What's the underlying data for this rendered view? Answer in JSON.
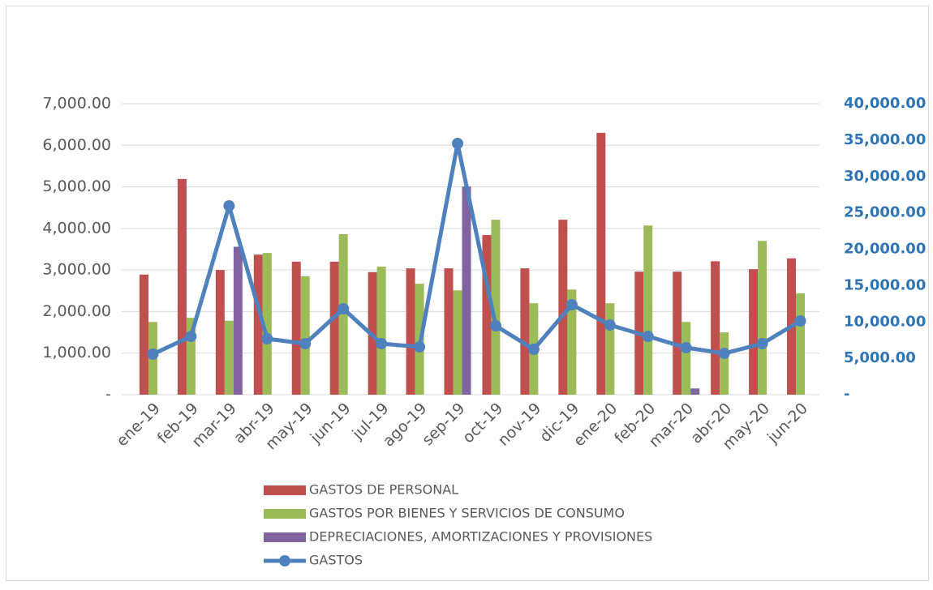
{
  "chart_data": {
    "type": "bar",
    "categories": [
      "ene-19",
      "feb-19",
      "mar-19",
      "abr-19",
      "may-19",
      "jun-19",
      "jul-19",
      "ago-19",
      "sep-19",
      "oct-19",
      "nov-19",
      "dic-19",
      "ene-20",
      "feb-20",
      "mar-20",
      "abr-20",
      "may-20",
      "jun-20"
    ],
    "series": [
      {
        "name": "GASTOS DE PERSONAL",
        "color": "#c0504d",
        "type": "bar",
        "values": [
          2890,
          5190,
          3000,
          3370,
          3200,
          3200,
          2950,
          3040,
          3040,
          3840,
          3040,
          4210,
          6300,
          2960,
          2960,
          3210,
          3020,
          3280
        ]
      },
      {
        "name": "GASTOS POR BIENES Y SERVICIOS DE CONSUMO",
        "color": "#9bbb59",
        "type": "bar",
        "values": [
          1750,
          1850,
          1780,
          3410,
          2850,
          3860,
          3080,
          2670,
          2510,
          4210,
          2200,
          2530,
          2200,
          4070,
          1750,
          1500,
          3700,
          2440
        ]
      },
      {
        "name": "DEPRECIACIONES, AMORTIZACIONES Y PROVISIONES",
        "color": "#8064a2",
        "type": "bar",
        "values": [
          0,
          0,
          3560,
          0,
          0,
          0,
          0,
          0,
          5010,
          0,
          0,
          0,
          0,
          0,
          150,
          0,
          0,
          0
        ]
      },
      {
        "name": "GASTOS",
        "color": "#4f81bd",
        "type": "line",
        "axis": "y2",
        "values": [
          5570,
          8020,
          25960,
          7690,
          7020,
          11810,
          7020,
          6570,
          34540,
          9470,
          6240,
          12370,
          9580,
          8020,
          6460,
          5680,
          7020,
          10140
        ]
      }
    ],
    "ylim": [
      0,
      7000
    ],
    "yticks": [
      {
        "value": 0,
        "label": "-"
      },
      {
        "value": 1000,
        "label": "1,000.00"
      },
      {
        "value": 2000,
        "label": "2,000.00"
      },
      {
        "value": 3000,
        "label": "3,000.00"
      },
      {
        "value": 4000,
        "label": "4,000.00"
      },
      {
        "value": 5000,
        "label": "5,000.00"
      },
      {
        "value": 6000,
        "label": "6,000.00"
      },
      {
        "value": 7000,
        "label": "7,000.00"
      }
    ],
    "y2lim": [
      0,
      40000
    ],
    "y2ticks": [
      {
        "value": 0,
        "label": "-"
      },
      {
        "value": 5000,
        "label": "5,000.00"
      },
      {
        "value": 10000,
        "label": "10,000.00"
      },
      {
        "value": 15000,
        "label": "15,000.00"
      },
      {
        "value": 20000,
        "label": "20,000.00"
      },
      {
        "value": 25000,
        "label": "25,000.00"
      },
      {
        "value": 30000,
        "label": "30,000.00"
      },
      {
        "value": 35000,
        "label": "35,000.00"
      },
      {
        "value": 40000,
        "label": "40,000.00"
      }
    ],
    "grid": true,
    "legend": "bottom"
  }
}
